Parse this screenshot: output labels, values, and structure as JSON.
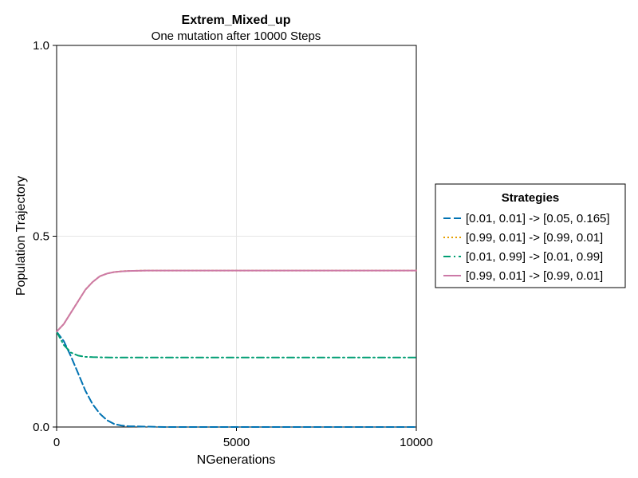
{
  "chart_data": {
    "type": "line",
    "title": "Extrem_Mixed_up",
    "subtitle": "One mutation after 10000 Steps",
    "xlabel": "NGenerations",
    "ylabel": "Population Trajectory",
    "xlim": [
      0,
      10000
    ],
    "ylim": [
      0,
      1
    ],
    "xticks": [
      0,
      5000,
      10000
    ],
    "xtick_labels": [
      "0",
      "5000",
      "10000"
    ],
    "yticks": [
      0,
      0.5,
      1
    ],
    "ytick_labels": [
      "0.0",
      "0.5",
      "1.0"
    ],
    "grid": true,
    "legend": {
      "title": "Strategies",
      "placement": "outside-right"
    },
    "series": [
      {
        "name": "[0.01, 0.01] -> [0.05, 0.165]",
        "color": "#0072b2",
        "linestyle": "dash",
        "x": [
          0,
          200,
          400,
          600,
          800,
          1000,
          1200,
          1400,
          1600,
          1800,
          2000,
          2500,
          3000,
          4000,
          5000,
          6000,
          7000,
          8000,
          9000,
          10000
        ],
        "y": [
          0.25,
          0.225,
          0.185,
          0.14,
          0.095,
          0.06,
          0.035,
          0.018,
          0.008,
          0.004,
          0.002,
          0.001,
          0.0,
          0.0,
          0.0,
          0.0,
          0.0,
          0.0,
          0.0,
          0.0
        ]
      },
      {
        "name": "[0.99, 0.01] -> [0.99, 0.01]",
        "color": "#e69f00",
        "linestyle": "dot",
        "x": [
          0,
          200,
          400,
          600,
          800,
          1000,
          1200,
          1400,
          1600,
          1800,
          2000,
          2500,
          3000,
          4000,
          5000,
          6000,
          7000,
          8000,
          9000,
          10000
        ],
        "y": [
          0.25,
          0.27,
          0.3,
          0.33,
          0.36,
          0.38,
          0.395,
          0.402,
          0.406,
          0.408,
          0.409,
          0.41,
          0.41,
          0.41,
          0.41,
          0.41,
          0.41,
          0.41,
          0.41,
          0.41
        ]
      },
      {
        "name": "[0.01, 0.99] -> [0.01, 0.99]",
        "color": "#009e73",
        "linestyle": "dashdot",
        "x": [
          0,
          200,
          400,
          600,
          800,
          1000,
          1500,
          2000,
          3000,
          4000,
          5000,
          6000,
          7000,
          8000,
          9000,
          10000
        ],
        "y": [
          0.25,
          0.215,
          0.195,
          0.187,
          0.184,
          0.183,
          0.182,
          0.182,
          0.182,
          0.182,
          0.182,
          0.182,
          0.182,
          0.182,
          0.182,
          0.182
        ]
      },
      {
        "name": "[0.99, 0.01] -> [0.99, 0.01]",
        "color": "#cc79a7",
        "linestyle": "solid",
        "x": [
          0,
          200,
          400,
          600,
          800,
          1000,
          1200,
          1400,
          1600,
          1800,
          2000,
          2500,
          3000,
          4000,
          5000,
          6000,
          7000,
          8000,
          9000,
          10000
        ],
        "y": [
          0.25,
          0.27,
          0.3,
          0.33,
          0.36,
          0.38,
          0.395,
          0.402,
          0.406,
          0.408,
          0.409,
          0.41,
          0.41,
          0.41,
          0.41,
          0.41,
          0.41,
          0.41,
          0.41,
          0.41
        ]
      }
    ]
  }
}
